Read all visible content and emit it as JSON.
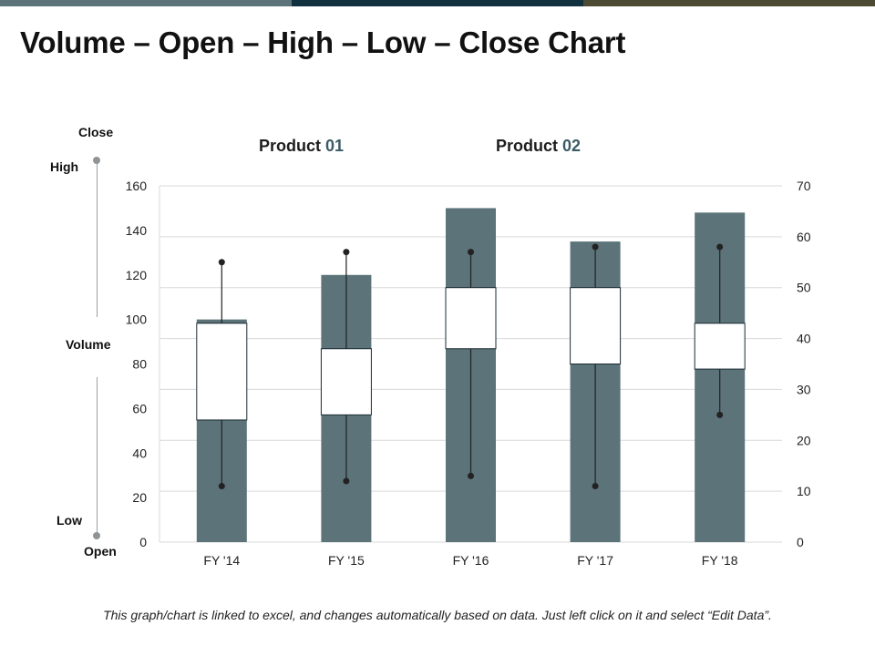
{
  "title": "Volume – Open – High – Low – Close Chart",
  "top_bar_colors": [
    "#5b7379",
    "#11313f",
    "#4d4a33"
  ],
  "legend": {
    "close": "Close",
    "high": "High",
    "volume": "Volume",
    "low": "Low",
    "open": "Open"
  },
  "products": [
    {
      "label": "Product ",
      "number": "01"
    },
    {
      "label": "Product ",
      "number": "02"
    }
  ],
  "footer_note": "This graph/chart is linked to excel, and changes automatically based on data. Just left click on it and select “Edit Data”.",
  "colors": {
    "volume_bar": "#5b7379",
    "down_candle": "#11313f",
    "up_candle": "#ffffff",
    "wick": "#222222",
    "grid": "#d9d9d9"
  },
  "chart_data": {
    "type": "volume-open-high-low-close",
    "title": "Volume – Open – High – Low – Close Chart",
    "categories": [
      "FY '14",
      "FY '15",
      "FY '16",
      "FY '17",
      "FY '18"
    ],
    "volume_axis": {
      "side": "left",
      "ylim": [
        0,
        160
      ],
      "ticks": [
        0,
        20,
        40,
        60,
        80,
        100,
        120,
        140,
        160
      ]
    },
    "price_axis": {
      "side": "right",
      "ylim": [
        0,
        70
      ],
      "ticks": [
        0,
        10,
        20,
        30,
        40,
        50,
        60,
        70
      ]
    },
    "series": [
      {
        "name": "Volume",
        "values": [
          100,
          120,
          150,
          135,
          148
        ]
      },
      {
        "name": "Open",
        "values": [
          24,
          25,
          38,
          35,
          34
        ]
      },
      {
        "name": "High",
        "values": [
          55,
          57,
          57,
          58,
          58
        ]
      },
      {
        "name": "Low",
        "values": [
          11,
          12,
          13,
          11,
          25
        ]
      },
      {
        "name": "Close",
        "values": [
          43,
          38,
          50,
          50,
          43
        ]
      }
    ],
    "grid": true
  }
}
